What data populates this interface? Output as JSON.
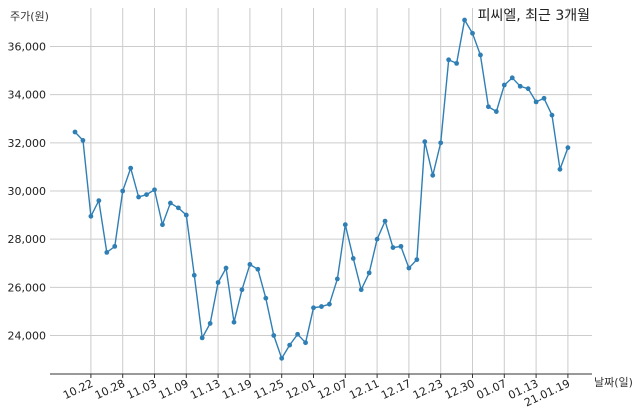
{
  "chart_data": {
    "type": "line",
    "title": "피씨엘, 최근 3개월",
    "ylabel": "주가(원)",
    "xlabel": "날짜(일)",
    "ylim": [
      22400,
      37600
    ],
    "yticks": [
      24000,
      26000,
      28000,
      30000,
      32000,
      34000,
      36000
    ],
    "ytick_labels": [
      "24,000",
      "26,000",
      "28,000",
      "30,000",
      "32,000",
      "34,000",
      "36,000"
    ],
    "xtick_labels": [
      "10.22",
      "10.28",
      "11.03",
      "11.09",
      "11.13",
      "11.19",
      "11.25",
      "12.01",
      "12.07",
      "12.11",
      "12.17",
      "12.23",
      "12.30",
      "01.07",
      "01.13",
      "21.01.19"
    ],
    "xtick_index": [
      2,
      6,
      10,
      14,
      18,
      22,
      26,
      30,
      34,
      38,
      42,
      46,
      50,
      54,
      58,
      62
    ],
    "grid": true,
    "color": "#2f7fb5",
    "series": [
      {
        "values": [
          32450,
          32100,
          28950,
          29600,
          27450,
          27700,
          30000,
          30950,
          29750,
          29850,
          30050,
          28600,
          29500,
          29300,
          29000,
          26500,
          23900,
          24500,
          26200,
          26800,
          24550,
          25900,
          26950,
          26750,
          25550,
          24000,
          23050,
          23600,
          24050,
          23700,
          25150,
          25200,
          25300,
          26350,
          28600,
          27200,
          25900,
          26600,
          28000,
          28750,
          27650,
          27700,
          26800,
          27150,
          32050,
          30650,
          32000,
          35450,
          35300,
          37100,
          36550,
          35650,
          33500,
          33300,
          34400,
          34700,
          34350,
          34250,
          33700,
          33850,
          33150,
          30900,
          31800
        ]
      }
    ]
  }
}
